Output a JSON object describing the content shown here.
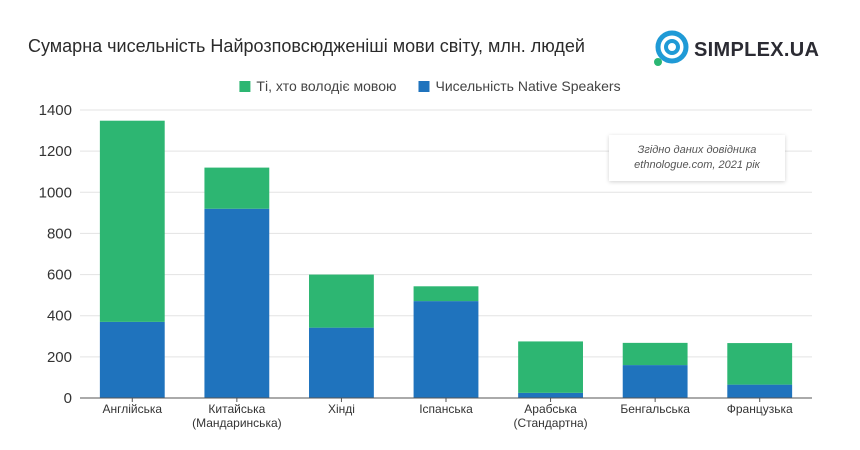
{
  "title": "Сумарна чисельність Найрозповсюдженіші мови світу, млн. людей",
  "brand": {
    "logo_text": "SIMPLEX.UA",
    "colors": {
      "outer_ring": "#1f9ad6",
      "inner_ring": "#1f9ad6",
      "dot": "#2bb673"
    }
  },
  "note": {
    "line1": "Згідно даних довідника",
    "line2": "ethnologue.com, 2021 рік"
  },
  "chart_data": {
    "type": "bar",
    "stacked": true,
    "categories": [
      [
        "Англійська"
      ],
      [
        "Китайська",
        "(Мандаринська)"
      ],
      [
        "Хінді"
      ],
      [
        "Іспанська"
      ],
      [
        "Арабська",
        "(Стандартна)"
      ],
      [
        "Бенгальська"
      ],
      [
        "Французька"
      ]
    ],
    "series": [
      {
        "name": "Чисельність Native Speakers",
        "color": "#1f73bd",
        "values": [
          370,
          920,
          342,
          471,
          25,
          160,
          65
        ]
      },
      {
        "name": "Ті, хто володіє мовою",
        "color": "#2db672",
        "values": [
          978,
          200,
          258,
          72,
          250,
          108,
          202
        ]
      }
    ],
    "legend_order": [
      1,
      0
    ],
    "legend_position": "top",
    "ylim": [
      0,
      1400
    ],
    "yticks": [
      0,
      200,
      400,
      600,
      800,
      1000,
      1200,
      1400
    ],
    "grid": true
  }
}
